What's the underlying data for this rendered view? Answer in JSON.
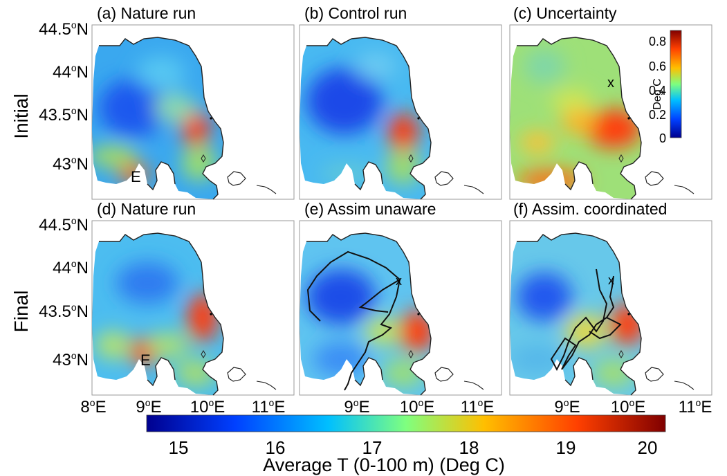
{
  "panels": [
    {
      "label": "(a) Nature run",
      "marker": "E"
    },
    {
      "label": "(b) Control run"
    },
    {
      "label": "(c) Uncertainty",
      "marker": "x"
    },
    {
      "label": "(d) Nature run",
      "marker": "E"
    },
    {
      "label": "(e) Assim unaware",
      "marker": "x"
    },
    {
      "label": "(f) Assim. coordinated",
      "marker": "x"
    }
  ],
  "rows": [
    "Initial",
    "Final"
  ],
  "lat_ticks": [
    "44.5",
    "44",
    "43.5",
    "43"
  ],
  "lon_ticks": [
    "8",
    "9",
    "10",
    "11"
  ],
  "lat_suffix": "N",
  "lon_suffix": "E",
  "deg_sup": "o",
  "colorbar_main": {
    "ticks": [
      "15",
      "16",
      "17",
      "18",
      "19",
      "20"
    ],
    "title": "Average T (0-100 m) (Deg C)",
    "colors": [
      "#00008f",
      "#0040ff",
      "#00bfff",
      "#7fff7f",
      "#ffbf00",
      "#ff4000",
      "#800000"
    ]
  },
  "colorbar_unc": {
    "ticks": [
      "0.8",
      "0.6",
      "0.4",
      "0.2",
      "0"
    ],
    "title": "Deg C"
  }
}
